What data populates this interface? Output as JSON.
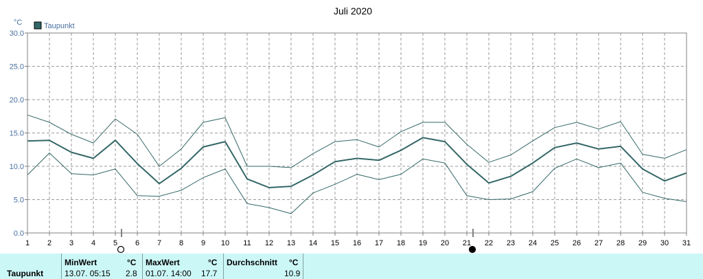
{
  "chart_data": {
    "type": "line",
    "title": "Juli 2020",
    "ylabel": "°C",
    "ylim": [
      0,
      30
    ],
    "yticks": [
      "0.0",
      "5.0",
      "10.0",
      "15.0",
      "20.0",
      "25.0",
      "30.0"
    ],
    "x": [
      1,
      2,
      3,
      4,
      5,
      6,
      7,
      8,
      9,
      10,
      11,
      12,
      13,
      14,
      15,
      16,
      17,
      18,
      19,
      20,
      21,
      22,
      23,
      24,
      25,
      26,
      27,
      28,
      29,
      30,
      31
    ],
    "grid": true,
    "legend_position": "top-left",
    "series": [
      {
        "name": "Taupunkt",
        "role": "mean",
        "color": "#336666",
        "values": [
          13.8,
          13.9,
          12.1,
          11.2,
          13.9,
          10.4,
          7.4,
          9.7,
          12.9,
          13.7,
          8.1,
          6.8,
          7.0,
          8.7,
          10.7,
          11.2,
          10.9,
          12.4,
          14.3,
          13.7,
          10.3,
          7.5,
          8.5,
          10.5,
          12.8,
          13.5,
          12.6,
          13.0,
          9.6,
          7.8,
          9.0
        ]
      },
      {
        "role": "max",
        "color": "#336666",
        "values": [
          17.7,
          16.6,
          14.8,
          13.5,
          17.1,
          14.8,
          10.0,
          12.6,
          16.6,
          17.3,
          10.0,
          10.0,
          9.8,
          11.9,
          13.7,
          14.0,
          12.9,
          15.2,
          16.6,
          16.6,
          13.3,
          10.6,
          11.7,
          13.8,
          15.8,
          16.6,
          15.6,
          16.7,
          11.8,
          11.2,
          12.5
        ]
      },
      {
        "role": "min",
        "color": "#336666",
        "values": [
          8.7,
          12.0,
          8.9,
          8.7,
          9.6,
          5.6,
          5.5,
          6.4,
          8.3,
          9.6,
          4.4,
          3.8,
          2.9,
          6.0,
          7.3,
          8.8,
          8.0,
          8.8,
          11.1,
          10.5,
          5.6,
          5.0,
          5.1,
          6.2,
          9.7,
          11.1,
          9.8,
          10.5,
          6.1,
          5.2,
          4.7
        ]
      }
    ],
    "moon_phases": [
      {
        "day": 5,
        "phase": "full-moon",
        "symbol": "○"
      },
      {
        "day": 21,
        "phase": "new-moon",
        "symbol": "●"
      }
    ]
  },
  "stats": {
    "row_label": "Taupunkt",
    "min": {
      "header": "MinWert",
      "unit": "°C",
      "datetime": "13.07.  05:15",
      "value": "2.8"
    },
    "max": {
      "header": "MaxWert",
      "unit": "°C",
      "datetime": "01.07.  14:00",
      "value": "17.7"
    },
    "avg": {
      "header": "Durchschnitt",
      "unit": "°C",
      "value": "10.9"
    }
  }
}
